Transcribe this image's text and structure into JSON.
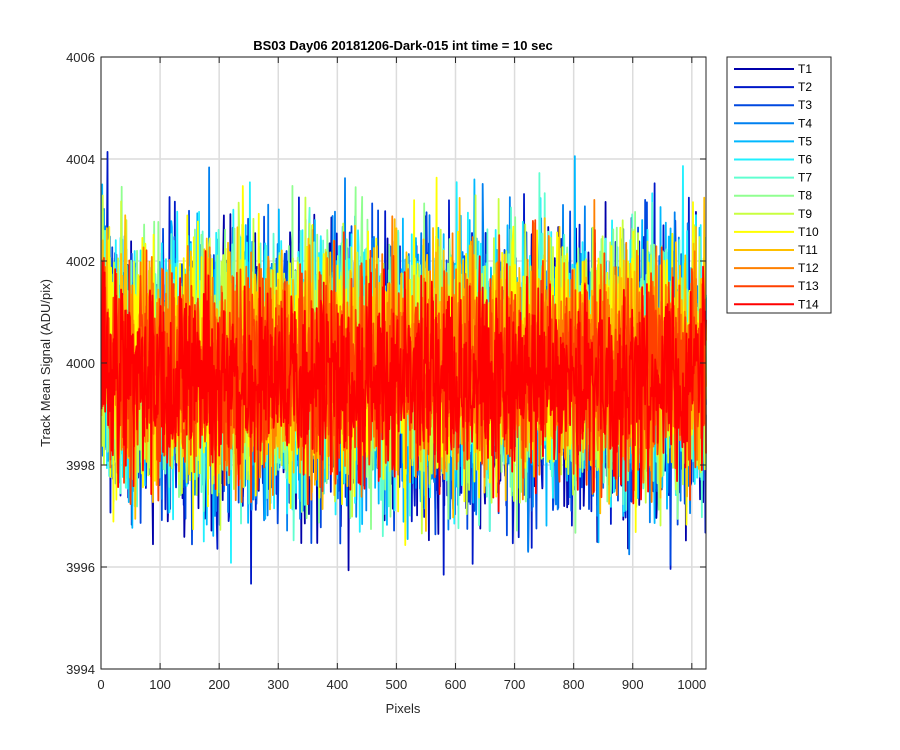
{
  "chart_data": {
    "type": "line",
    "title": "BS03 Day06 20181206-Dark-015 int time = 10 sec",
    "xlabel": "Pixels",
    "ylabel": "Track Mean Signal (ADU/pix)",
    "xlim": [
      0,
      1024
    ],
    "ylim": [
      3994,
      4006
    ],
    "xticks": [
      0,
      100,
      200,
      300,
      400,
      500,
      600,
      700,
      800,
      900,
      1000
    ],
    "yticks": [
      3994,
      3996,
      3998,
      4000,
      4002,
      4004,
      4006
    ],
    "xtick_labels": [
      "0",
      "100",
      "200",
      "300",
      "400",
      "500",
      "600",
      "700",
      "800",
      "900",
      "1000"
    ],
    "ytick_labels": [
      "3994",
      "3996",
      "3998",
      "4000",
      "4002",
      "4004",
      "4006"
    ],
    "grid": true,
    "legend_position": "outside-top-right",
    "x": {
      "start": 1,
      "end": 1024,
      "step": 1
    },
    "series": [
      {
        "name": "T1",
        "color": "#0000aa",
        "mean": 3999.6,
        "spread": 1.35
      },
      {
        "name": "T2",
        "color": "#0018c8",
        "mean": 3999.65,
        "spread": 1.3
      },
      {
        "name": "T3",
        "color": "#0048e0",
        "mean": 3999.7,
        "spread": 1.3
      },
      {
        "name": "T4",
        "color": "#0080f0",
        "mean": 3999.8,
        "spread": 1.3
      },
      {
        "name": "T5",
        "color": "#00b8ff",
        "mean": 3999.9,
        "spread": 1.3
      },
      {
        "name": "T6",
        "color": "#20f0ff",
        "mean": 4000.0,
        "spread": 1.3
      },
      {
        "name": "T7",
        "color": "#60ffd0",
        "mean": 4000.0,
        "spread": 1.25
      },
      {
        "name": "T8",
        "color": "#90ff90",
        "mean": 4000.0,
        "spread": 1.25
      },
      {
        "name": "T9",
        "color": "#c8ff40",
        "mean": 4000.0,
        "spread": 1.25
      },
      {
        "name": "T10",
        "color": "#ffff00",
        "mean": 4000.0,
        "spread": 1.2
      },
      {
        "name": "T11",
        "color": "#ffc000",
        "mean": 4000.0,
        "spread": 1.15
      },
      {
        "name": "T12",
        "color": "#ff8000",
        "mean": 3999.95,
        "spread": 1.05
      },
      {
        "name": "T13",
        "color": "#ff4000",
        "mean": 3999.8,
        "spread": 1.0
      },
      {
        "name": "T14",
        "color": "#ff0000",
        "mean": 3999.65,
        "spread": 0.95
      }
    ]
  }
}
